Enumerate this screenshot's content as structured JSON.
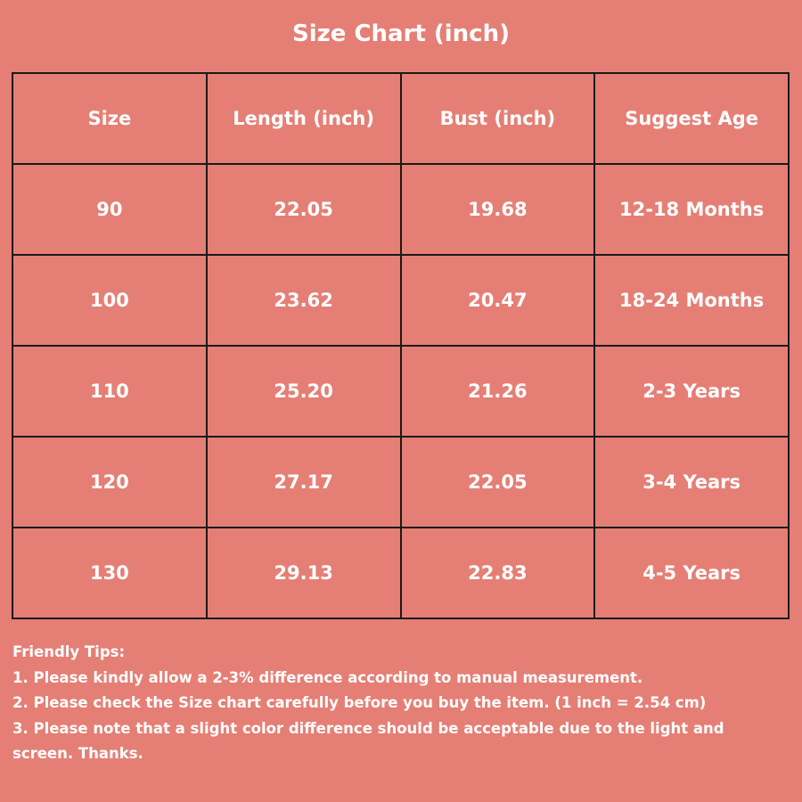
{
  "title": "Size Chart (inch)",
  "table": {
    "headers": [
      "Size",
      "Length (inch)",
      "Bust (inch)",
      "Suggest Age"
    ],
    "rows": [
      [
        "90",
        "22.05",
        "19.68",
        "12-18 Months"
      ],
      [
        "100",
        "23.62",
        "20.47",
        "18-24 Months"
      ],
      [
        "110",
        "25.20",
        "21.26",
        "2-3 Years"
      ],
      [
        "120",
        "27.17",
        "22.05",
        "3-4 Years"
      ],
      [
        "130",
        "29.13",
        "22.83",
        "4-5 Years"
      ]
    ]
  },
  "tips": {
    "heading": "Friendly Tips:",
    "items": [
      "1. Please kindly allow a 2-3% difference according to manual measurement.",
      "2. Please check the Size chart carefully before you buy the item. (1 inch = 2.54 cm)",
      "3. Please note that a slight color difference should be acceptable due to the light and screen. Thanks."
    ]
  },
  "colors": {
    "background": "#e57f75",
    "text": "#ffffff",
    "border": "#1a1a1a"
  }
}
